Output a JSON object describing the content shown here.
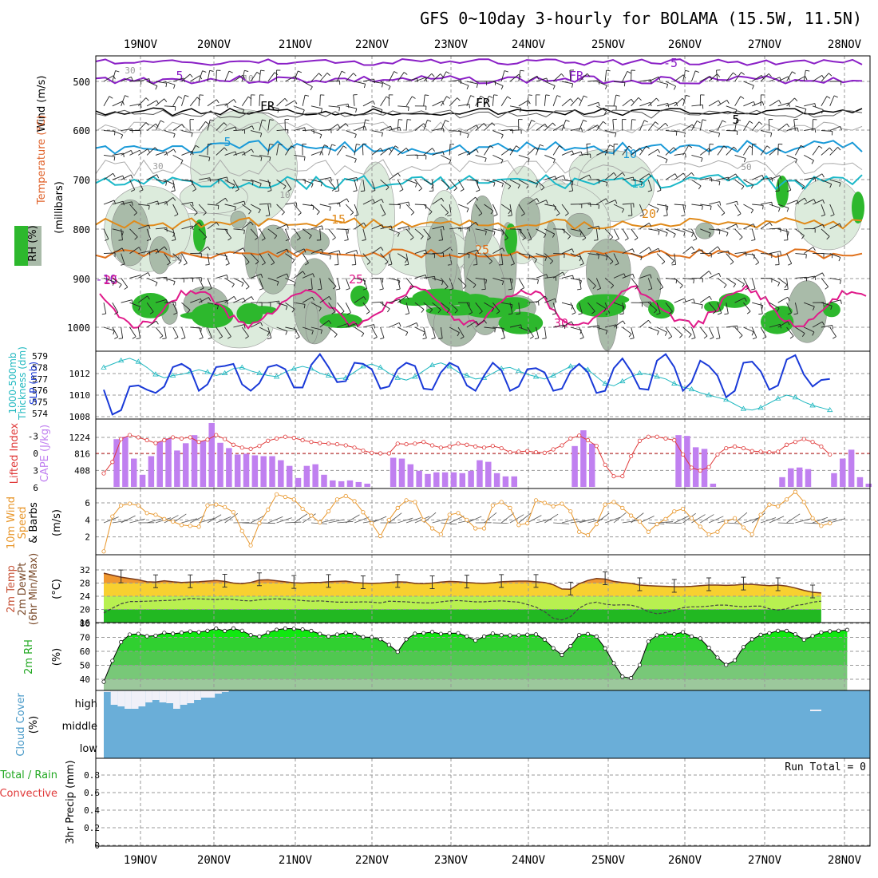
{
  "title": "GFS 0~10day 3-hourly for BOLAMA (15.5W, 11.5N)",
  "dates": [
    "19NOV",
    "20NOV",
    "21NOV",
    "22NOV",
    "23NOV",
    "24NOV",
    "25NOV",
    "26NOV",
    "27NOV",
    "28NOV"
  ],
  "colors": {
    "rh_green": "#2db82d",
    "rh_light": "#dcebdc",
    "rh_mid": "#a9bba9",
    "temp_orange": "#e08a1a",
    "temp_purple": "#8a1fc6",
    "temp_blue": "#1a9ad8",
    "temp_teal": "#1ab8c8",
    "temp_pink": "#e01a8a",
    "slp_blue": "#1a3ad8",
    "thick_cyan": "#20b8c0",
    "cape_purple": "#c080f0",
    "li_red": "#e03a3a",
    "wind_orange": "#e8962a",
    "cloud_blue": "#6aaed8",
    "rh2m_green": "#22d822"
  },
  "panel_labels": {
    "upper": {
      "wind": "Wind (m/s)",
      "temp": "Temperature (°C)",
      "rh": "RH (%)",
      "ylabel": "(millibars)",
      "levels": [
        "500",
        "600",
        "700",
        "800",
        "900",
        "1000"
      ],
      "contours": [
        "-10",
        "-5",
        "5",
        "FR",
        "FR",
        "FR",
        "5",
        "5",
        "10",
        "15",
        "15",
        "20",
        "25",
        "25",
        "25",
        "30",
        "30",
        "30",
        "50",
        "50",
        "10",
        "10"
      ]
    },
    "slp": {
      "label1": "1000-500mb",
      "label2": "Thickness (dm)",
      "label3": "SLP (mb)",
      "thick_ticks": [
        "579",
        "578",
        "577",
        "576",
        "575",
        "574"
      ],
      "slp_ticks": [
        "1012",
        "1010",
        "1008"
      ]
    },
    "cape": {
      "label1": "Lifted Index",
      "label2": "CAPE (J/kg)",
      "li_ticks": [
        "-3",
        "0",
        "3",
        "6"
      ],
      "cape_ticks": [
        "1224",
        "816",
        "408"
      ]
    },
    "wind": {
      "label1": "10m Wind",
      "label2": "Speed",
      "label3": "& Barbs",
      "label4": "(m/s)",
      "ticks": [
        "6",
        "4",
        "2"
      ]
    },
    "temp2m": {
      "label1": "2m Temp",
      "label2": "2m DewPt",
      "label3": "(6hr Min/Max)",
      "label4": "(°C)",
      "ticks": [
        "32",
        "28",
        "24",
        "20",
        "16"
      ]
    },
    "rh2m": {
      "label1": "2m RH",
      "label2": "(%)",
      "ticks": [
        "80",
        "70",
        "60",
        "50",
        "40"
      ]
    },
    "cloud": {
      "label1": "Cloud Cover",
      "label2": "(%)",
      "ticks": [
        "high",
        "middle",
        "low"
      ]
    },
    "precip": {
      "label1": "Total / Rain",
      "label2": "Convective",
      "label3": "3hr Precip (mm)",
      "ticks": [
        "0.8",
        "0.6",
        "0.4",
        "0.2",
        "0"
      ],
      "run_total": "Run Total = 0"
    }
  },
  "chart_data": [
    {
      "type": "line",
      "title": "1000-500mb Thickness (dm) / SLP (mb)",
      "x_start": "18NOV 15Z",
      "x_step_hours": 3,
      "series": [
        {
          "name": "SLP (mb)",
          "values": [
            1010.5,
            1008.2,
            1008.6,
            1010.8,
            1010.9,
            1010.5,
            1010.2,
            1010.8,
            1012.6,
            1012.9,
            1012.4,
            1010.4,
            1011.0,
            1012.6,
            1012.7,
            1012.9,
            1011.0,
            1010.4,
            1011.1,
            1012.6,
            1012.8,
            1012.4,
            1010.7,
            1010.7,
            1012.8,
            1013.8,
            1012.6,
            1011.2,
            1011.3,
            1013.0,
            1012.9,
            1012.4,
            1010.6,
            1010.8,
            1012.4,
            1013.0,
            1012.7,
            1010.6,
            1010.5,
            1012.1,
            1013.0,
            1012.6,
            1010.9,
            1010.4,
            1011.8,
            1013.0,
            1012.3,
            1010.4,
            1010.8,
            1012.4,
            1012.5,
            1012.1,
            1010.4,
            1010.6,
            1012.2,
            1012.9,
            1012.1,
            1010.2,
            1010.4,
            1012.5,
            1013.4,
            1012.2,
            1010.6,
            1010.5,
            1013.2,
            1013.8,
            1012.6,
            1010.4,
            1011.2,
            1013.2,
            1012.7,
            1011.8,
            1009.8,
            1010.4,
            1013.0,
            1013.1,
            1012.2,
            1010.5,
            1010.9,
            1013.3,
            1013.7,
            1011.9,
            1010.8,
            1011.4,
            1011.5
          ]
        },
        {
          "name": "1000-500mb Thickness (dm)",
          "values": [
            578.0,
            578.3,
            578.6,
            578.8,
            578.5,
            578.0,
            577.4,
            577.1,
            577.3,
            577.4,
            577.6,
            577.8,
            577.6,
            577.3,
            577.5,
            577.9,
            578.0,
            577.7,
            577.5,
            577.3,
            577.2,
            577.6,
            577.9,
            578.1,
            577.9,
            577.5,
            577.3,
            577.0,
            577.1,
            577.6,
            578.1,
            578.3,
            578.0,
            577.5,
            577.1,
            576.9,
            577.2,
            577.7,
            578.2,
            578.4,
            578.1,
            577.6,
            577.3,
            577.0,
            577.1,
            577.5,
            577.9,
            578.0,
            577.7,
            577.4,
            577.2,
            577.0,
            577.3,
            577.7,
            578.1,
            578.2,
            577.8,
            577.2,
            576.6,
            576.4,
            576.8,
            577.2,
            577.5,
            577.4,
            577.2,
            577.0,
            576.6,
            576.3,
            576.1,
            575.8,
            575.6,
            575.4,
            575.2,
            574.8,
            574.4,
            574.3,
            574.5,
            574.9,
            575.3,
            575.6,
            575.4,
            575.0,
            574.7,
            574.5,
            574.3
          ]
        }
      ]
    },
    {
      "type": "bar",
      "title": "Lifted Index / CAPE (J/kg)",
      "series": [
        {
          "name": "CAPE (J/kg)",
          "values": [
            0,
            1180,
            1240,
            700,
            300,
            760,
            1120,
            1200,
            900,
            1080,
            1280,
            1140,
            1580,
            1090,
            960,
            800,
            820,
            780,
            760,
            760,
            660,
            520,
            220,
            520,
            560,
            300,
            160,
            140,
            160,
            120,
            80,
            0,
            0,
            720,
            700,
            560,
            400,
            320,
            360,
            360,
            360,
            340,
            400,
            660,
            620,
            340,
            260,
            260,
            0,
            0,
            0,
            0,
            0,
            0,
            1010,
            1400,
            1070,
            0,
            0,
            0,
            0,
            0,
            0,
            0,
            0,
            0,
            1280,
            1260,
            980,
            940,
            80,
            0,
            0,
            0,
            0,
            0,
            0,
            0,
            240,
            460,
            480,
            440,
            0,
            0,
            340,
            700,
            920,
            240,
            80
          ]
        },
        {
          "name": "Lifted Index",
          "values": [
            3.5,
            1.5,
            -2.5,
            -3.2,
            -2.8,
            -2.3,
            -1.8,
            -2.3,
            -2.8,
            -2.6,
            -2.8,
            -2.0,
            -2.4,
            -3.2,
            -2.5,
            -1.5,
            -1.0,
            -0.8,
            -1.3,
            -2.2,
            -2.6,
            -2.9,
            -2.7,
            -2.3,
            -2.0,
            -1.8,
            -1.7,
            -1.6,
            -1.4,
            -1.0,
            -0.5,
            -0.1,
            0.0,
            0.0,
            -1.7,
            -1.6,
            -1.7,
            -2.0,
            -1.4,
            -1.0,
            -1.2,
            -1.7,
            -1.5,
            -1.2,
            -1.0,
            -1.3,
            -0.9,
            -0.2,
            -0.3,
            -0.4,
            -0.2,
            -0.1,
            -0.7,
            -1.4,
            -2.6,
            -3.1,
            -2.3,
            -1.3,
            2.0,
            4.0,
            4.0,
            0.5,
            -2.2,
            -2.9,
            -2.9,
            -2.6,
            -2.3,
            0.2,
            2.5,
            3.0,
            2.4,
            0.2,
            -0.9,
            -1.2,
            -0.9,
            -0.4,
            -0.3,
            -0.2,
            -0.3,
            -1.5,
            -2.0,
            -2.5,
            -2.0,
            -1.2,
            0.2
          ]
        }
      ]
    },
    {
      "type": "line",
      "title": "10m Wind Speed & Barbs (m/s)",
      "series": [
        {
          "name": "Speed",
          "values": [
            0.3,
            4.4,
            5.7,
            5.9,
            5.7,
            4.8,
            4.6,
            4.1,
            3.8,
            3.4,
            3.3,
            3.2,
            5.7,
            5.8,
            5.5,
            4.9,
            2.7,
            1.0,
            3.6,
            5.2,
            7.0,
            6.7,
            6.4,
            5.3,
            4.5,
            3.7,
            5.0,
            6.4,
            6.8,
            6.2,
            4.9,
            3.6,
            2.1,
            4.0,
            5.4,
            6.3,
            6.1,
            4.0,
            3.0,
            2.3,
            4.6,
            4.8,
            4.0,
            3.0,
            3.0,
            5.7,
            6.1,
            5.4,
            3.4,
            3.6,
            6.3,
            6.0,
            5.6,
            5.9,
            5.0,
            2.6,
            2.2,
            3.5,
            5.8,
            6.1,
            5.4,
            4.5,
            3.8,
            2.6,
            3.5,
            4.1,
            5.0,
            5.3,
            4.2,
            3.2,
            2.3,
            2.6,
            3.8,
            4.2,
            3.1,
            2.3,
            4.6,
            5.8,
            5.6,
            6.4,
            7.3,
            6.1,
            4.2,
            3.3,
            3.6
          ]
        }
      ]
    },
    {
      "type": "line",
      "title": "2m Temp / 2m DewPt (6hr Min/Max) (°C)",
      "series": [
        {
          "name": "2m Temp",
          "values": [
            31.0,
            30.4,
            29.8,
            29.4,
            29.0,
            28.4,
            28.3,
            28.7,
            28.4,
            28.2,
            28.3,
            28.4,
            28.6,
            28.8,
            28.5,
            28.0,
            27.8,
            28.2,
            28.9,
            29.0,
            28.7,
            28.4,
            28.1,
            28.0,
            28.2,
            28.2,
            28.4,
            28.5,
            28.6,
            28.2,
            28.0,
            27.9,
            28.0,
            28.2,
            28.4,
            28.3,
            27.9,
            27.8,
            28.0,
            28.3,
            28.5,
            28.4,
            28.2,
            28.0,
            27.9,
            28.1,
            28.4,
            28.5,
            28.6,
            28.6,
            28.4,
            28.2,
            27.5,
            26.2,
            26.1,
            27.8,
            28.8,
            29.4,
            29.2,
            28.5,
            28.2,
            27.9,
            27.4,
            27.2,
            27.1,
            27.0,
            26.9,
            26.9,
            27.0,
            27.2,
            27.4,
            27.4,
            27.3,
            27.4,
            27.6,
            27.6,
            27.4,
            27.2,
            27.4,
            27.1,
            26.5,
            25.8,
            25.2,
            25.0
          ]
        },
        {
          "name": "2m DewPt",
          "values": [
            18.9,
            20.4,
            21.7,
            22.4,
            22.4,
            22.5,
            22.6,
            22.7,
            22.8,
            23.0,
            23.3,
            23.2,
            23.1,
            23.0,
            23.2,
            23.0,
            22.7,
            22.6,
            22.9,
            23.1,
            23.2,
            23.1,
            22.9,
            22.7,
            22.5,
            22.6,
            22.4,
            22.2,
            22.2,
            22.2,
            22.3,
            22.2,
            22.0,
            22.5,
            22.4,
            22.3,
            22.1,
            22.0,
            22.0,
            22.3,
            22.6,
            22.7,
            22.5,
            22.3,
            22.3,
            22.5,
            22.6,
            22.4,
            22.2,
            21.5,
            20.7,
            19.3,
            17.3,
            16.8,
            17.8,
            20.4,
            21.8,
            22.2,
            21.6,
            21.3,
            21.4,
            21.3,
            20.6,
            19.3,
            18.7,
            19.0,
            19.8,
            20.5,
            20.8,
            20.8,
            21.0,
            21.3,
            21.3,
            21.0,
            20.8,
            21.0,
            21.0,
            20.2,
            19.8,
            20.2,
            21.2,
            21.5,
            22.2,
            22.5
          ]
        }
      ]
    },
    {
      "type": "area",
      "title": "2m RH (%)",
      "series": [
        {
          "name": "2m RH",
          "values": [
            38.2,
            53.2,
            66.6,
            72.0,
            72.5,
            70.8,
            71.2,
            73.2,
            72.6,
            73.3,
            74.2,
            73.7,
            74.7,
            76.3,
            74.6,
            76.4,
            74.7,
            71.6,
            70.6,
            73.3,
            75.4,
            76.3,
            76.2,
            75.6,
            74.6,
            72.5,
            70.7,
            72.0,
            73.2,
            72.5,
            70.2,
            70.0,
            68.7,
            64.6,
            59.6,
            68.6,
            72.6,
            73.0,
            73.8,
            72.5,
            72.9,
            73.0,
            70.7,
            67.8,
            70.6,
            72.7,
            71.6,
            71.4,
            71.5,
            71.9,
            72.1,
            68.4,
            62.2,
            57.4,
            63.7,
            71.7,
            72.4,
            70.6,
            62.1,
            51.5,
            41.9,
            40.8,
            50.2,
            67.0,
            71.5,
            72.5,
            72.2,
            73.7,
            70.6,
            69.2,
            62.6,
            55.5,
            50.3,
            53.5,
            63.0,
            68.6,
            71.8,
            73.0,
            74.7,
            74.6,
            72.2,
            68.3,
            71.0,
            73.5,
            74.3,
            74.7,
            75.3
          ]
        }
      ]
    },
    {
      "type": "heatmap",
      "title": "Cloud Cover (%)",
      "series": [
        {
          "name": "high",
          "values": [
            2,
            18,
            20,
            23,
            23,
            20,
            15,
            12,
            15,
            16,
            23,
            18,
            16,
            12,
            9,
            9,
            4,
            2,
            0
          ]
        },
        {
          "name": "middle",
          "values": []
        },
        {
          "name": "low",
          "values": []
        }
      ]
    },
    {
      "type": "bar",
      "title": "3hr Precip (mm)",
      "series": [
        {
          "name": "Total / Rain",
          "values": []
        },
        {
          "name": "Convective",
          "values": []
        }
      ],
      "ylim": [
        0,
        1
      ]
    }
  ]
}
